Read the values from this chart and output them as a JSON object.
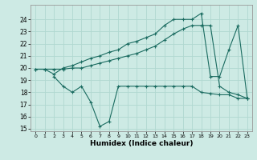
{
  "xlabel": "Humidex (Indice chaleur)",
  "background_color": "#cdeae4",
  "grid_color": "#b0d8d0",
  "line_color": "#1a6b60",
  "xlim": [
    -0.5,
    23.5
  ],
  "ylim": [
    14.8,
    25.2
  ],
  "yticks": [
    15,
    16,
    17,
    18,
    19,
    20,
    21,
    22,
    23,
    24
  ],
  "xticks": [
    0,
    1,
    2,
    3,
    4,
    5,
    6,
    7,
    8,
    9,
    10,
    11,
    12,
    13,
    14,
    15,
    16,
    17,
    18,
    19,
    20,
    21,
    22,
    23
  ],
  "line1_x": [
    0,
    1,
    2,
    3,
    4,
    5,
    6,
    7,
    8,
    9,
    10,
    11,
    12,
    13,
    14,
    15,
    16,
    17,
    18,
    19,
    20,
    21,
    22,
    23
  ],
  "line1_y": [
    19.9,
    19.9,
    19.5,
    20.0,
    20.2,
    20.5,
    20.8,
    21.0,
    21.3,
    21.5,
    22.0,
    22.2,
    22.5,
    22.8,
    23.5,
    24.0,
    24.0,
    24.0,
    24.5,
    19.3,
    19.3,
    21.5,
    23.5,
    17.5
  ],
  "line2_x": [
    0,
    1,
    2,
    3,
    4,
    5,
    6,
    7,
    8,
    9,
    10,
    11,
    12,
    13,
    14,
    15,
    16,
    17,
    18,
    19,
    20,
    21,
    22,
    23
  ],
  "line2_y": [
    19.9,
    19.9,
    19.9,
    19.9,
    20.0,
    20.0,
    20.2,
    20.4,
    20.6,
    20.8,
    21.0,
    21.2,
    21.5,
    21.8,
    22.3,
    22.8,
    23.2,
    23.5,
    23.5,
    23.5,
    18.5,
    18.0,
    17.8,
    17.5
  ],
  "line3_x": [
    2,
    3,
    4,
    5,
    6,
    7,
    8,
    9,
    10,
    11,
    12,
    13,
    14,
    15,
    16,
    17,
    18,
    19,
    20,
    21,
    22,
    23
  ],
  "line3_y": [
    19.3,
    18.5,
    18.0,
    18.5,
    17.2,
    15.2,
    15.6,
    18.5,
    18.5,
    18.5,
    18.5,
    18.5,
    18.5,
    18.5,
    18.5,
    18.5,
    18.0,
    17.9,
    17.8,
    17.8,
    17.5,
    17.5
  ]
}
